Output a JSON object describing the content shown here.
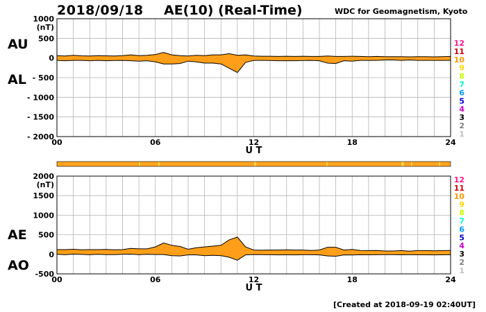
{
  "header": {
    "date": "2018/09/18",
    "title": "AE(10) (Real-Time)",
    "source": "WDC for Geomagnetism, Kyoto"
  },
  "footer": {
    "created": "[Created at 2018-09-19 02:40UT]"
  },
  "station_scale": {
    "labels": [
      "12",
      "11",
      "10",
      "9",
      "8",
      "7",
      "6",
      "5",
      "4",
      "3",
      "2",
      "1"
    ],
    "colors": [
      "#ff1493",
      "#cc0000",
      "#ff9900",
      "#ffd700",
      "#c8ff00",
      "#00ffcc",
      "#0099ff",
      "#0000cc",
      "#cc00cc",
      "#000000",
      "#808080",
      "#c0c0c0"
    ]
  },
  "colors": {
    "fill": "#ff9f19",
    "outline": "#000000",
    "grid": "#b3b3b3",
    "station_bar": "#ffa41f"
  },
  "chart_data": [
    {
      "type": "area",
      "panel": "AU/AL",
      "series_labels": [
        "AU",
        "AL"
      ],
      "unit": "(nT)",
      "xlabel": "U T",
      "x_ticks": [
        "00",
        "06",
        "12",
        "18",
        "24"
      ],
      "xlim": [
        0,
        24
      ],
      "ylim": [
        -2000,
        1000
      ],
      "y_ticks": [
        "1000",
        "500",
        "0",
        "- 500",
        "- 1000",
        "- 1500",
        "- 2000"
      ],
      "y_tick_values": [
        1000,
        500,
        0,
        -500,
        -1000,
        -1500,
        -2000
      ],
      "grid": true,
      "x": [
        0,
        0.5,
        1,
        1.5,
        2,
        2.5,
        3,
        3.5,
        4,
        4.5,
        5,
        5.5,
        6,
        6.5,
        7,
        7.5,
        8,
        8.5,
        9,
        9.5,
        10,
        10.5,
        11,
        11.5,
        12,
        12.5,
        13,
        13.5,
        14,
        14.5,
        15,
        15.5,
        16,
        16.5,
        17,
        17.5,
        18,
        18.5,
        19,
        19.5,
        20,
        20.5,
        21,
        21.5,
        22,
        22.5,
        23,
        23.5,
        24
      ],
      "series": [
        {
          "name": "AU",
          "values": [
            60,
            50,
            70,
            55,
            50,
            60,
            55,
            50,
            60,
            80,
            60,
            70,
            90,
            140,
            80,
            60,
            50,
            70,
            60,
            80,
            80,
            110,
            70,
            80,
            50,
            45,
            45,
            40,
            45,
            40,
            45,
            40,
            40,
            50,
            40,
            40,
            45,
            40,
            35,
            40,
            35,
            35,
            35,
            30,
            35,
            35,
            30,
            35,
            40
          ]
        },
        {
          "name": "AL",
          "values": [
            -60,
            -70,
            -60,
            -60,
            -70,
            -60,
            -70,
            -65,
            -60,
            -70,
            -80,
            -70,
            -100,
            -150,
            -150,
            -140,
            -80,
            -100,
            -130,
            -130,
            -150,
            -260,
            -370,
            -110,
            -60,
            -60,
            -65,
            -70,
            -70,
            -70,
            -65,
            -60,
            -70,
            -130,
            -140,
            -70,
            -80,
            -60,
            -60,
            -60,
            -50,
            -50,
            -60,
            -50,
            -60,
            -60,
            -60,
            -60,
            -60
          ]
        }
      ]
    },
    {
      "type": "area",
      "panel": "AE/AO",
      "series_labels": [
        "AE",
        "AO"
      ],
      "unit": "(nT)",
      "xlabel": "U T",
      "x_ticks": [
        "00",
        "06",
        "12",
        "18",
        "24"
      ],
      "xlim": [
        0,
        24
      ],
      "ylim": [
        -500,
        2000
      ],
      "y_ticks": [
        "2000",
        "1500",
        "1000",
        "500",
        "0",
        "-500"
      ],
      "y_tick_values": [
        2000,
        1500,
        1000,
        500,
        0,
        -500
      ],
      "grid": true,
      "x": [
        0,
        0.5,
        1,
        1.5,
        2,
        2.5,
        3,
        3.5,
        4,
        4.5,
        5,
        5.5,
        6,
        6.5,
        7,
        7.5,
        8,
        8.5,
        9,
        9.5,
        10,
        10.5,
        11,
        11.5,
        12,
        12.5,
        13,
        13.5,
        14,
        14.5,
        15,
        15.5,
        16,
        16.5,
        17,
        17.5,
        18,
        18.5,
        19,
        19.5,
        20,
        20.5,
        21,
        21.5,
        22,
        22.5,
        23,
        23.5,
        24
      ],
      "series": [
        {
          "name": "AE",
          "values": [
            120,
            120,
            130,
            115,
            120,
            120,
            125,
            115,
            120,
            150,
            140,
            140,
            190,
            290,
            230,
            200,
            130,
            170,
            190,
            210,
            230,
            370,
            440,
            190,
            110,
            105,
            110,
            110,
            115,
            110,
            110,
            100,
            110,
            180,
            180,
            110,
            125,
            100,
            95,
            100,
            85,
            85,
            95,
            80,
            95,
            95,
            90,
            95,
            100
          ]
        },
        {
          "name": "AO",
          "values": [
            0,
            -10,
            5,
            -2,
            -10,
            0,
            -8,
            -8,
            0,
            5,
            -10,
            0,
            -5,
            -5,
            -35,
            -40,
            -15,
            -15,
            -35,
            -25,
            -35,
            -75,
            -150,
            -15,
            -5,
            -8,
            -10,
            -15,
            -12,
            -15,
            -10,
            -10,
            -15,
            -40,
            -50,
            -15,
            -18,
            -10,
            -12,
            -10,
            -8,
            -8,
            -12,
            -10,
            -12,
            -12,
            -15,
            -12,
            -10
          ]
        }
      ]
    }
  ]
}
